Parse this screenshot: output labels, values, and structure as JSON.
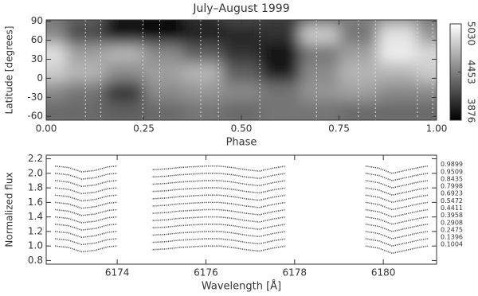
{
  "chart_data": [
    {
      "type": "heatmap",
      "title": "July–August 1999",
      "xlabel": "Phase",
      "ylabel": "Latitude [degrees]",
      "xlim": [
        0,
        1
      ],
      "xticks": [
        {
          "value": 0,
          "label": "0.00"
        },
        {
          "value": 0.25,
          "label": "0.25"
        },
        {
          "value": 0.5,
          "label": "0.50"
        },
        {
          "value": 0.75,
          "label": "0.75"
        },
        {
          "value": 1,
          "label": "1.00"
        }
      ],
      "ylim": [
        -66,
        92
      ],
      "yticks": [
        -60,
        -30,
        0,
        30,
        60,
        90
      ],
      "x": [
        0,
        0.1,
        0.2,
        0.3,
        0.4,
        0.5,
        0.6,
        0.7,
        0.8,
        0.9,
        1.0
      ],
      "y": [
        90,
        60,
        30,
        0,
        -30,
        -60
      ],
      "z": [
        [
          4400,
          4300,
          4000,
          3950,
          4100,
          4200,
          4150,
          4300,
          4450,
          4500,
          4400
        ],
        [
          4500,
          4200,
          3950,
          3900,
          4000,
          4050,
          4100,
          4800,
          4400,
          4900,
          4550
        ],
        [
          4900,
          4600,
          4700,
          4500,
          4300,
          4100,
          3950,
          4400,
          4600,
          4950,
          4850
        ],
        [
          4800,
          4700,
          4500,
          4600,
          4700,
          4300,
          4000,
          4500,
          4700,
          4700,
          4800
        ],
        [
          4500,
          4400,
          4100,
          4500,
          4550,
          4500,
          4400,
          4550,
          4600,
          4500,
          4500
        ],
        [
          4350,
          4350,
          4300,
          4350,
          4400,
          4350,
          4400,
          4400,
          4350,
          4350,
          4350
        ]
      ],
      "zlim": [
        3876,
        5030
      ],
      "zticks": [
        3876,
        4453,
        5030
      ],
      "phases": [
        0.1004,
        0.1396,
        0.2475,
        0.2908,
        0.3958,
        0.4411,
        0.5472,
        0.6923,
        0.7998,
        0.8435,
        0.9509,
        0.9899
      ]
    },
    {
      "type": "line",
      "xlabel": "Wavelength [Å]",
      "ylabel": "Normalized flux",
      "xlim": [
        6172.4,
        6181.2
      ],
      "xticks": [
        6174,
        6176,
        6178,
        6180
      ],
      "ylim": [
        0.75,
        2.25
      ],
      "yticks": [
        0.8,
        {
          "value": 1,
          "label": "1.0"
        },
        1.2,
        1.4,
        1.6,
        1.8,
        {
          "value": 2,
          "label": "2.0"
        },
        2.2
      ],
      "x": [
        6172.6,
        6172.9,
        6173.2,
        6173.5,
        6173.8,
        6174.0,
        6174.4,
        6174.8,
        6175.1,
        6175.4,
        6175.7,
        6176.0,
        6176.3,
        6176.6,
        6176.9,
        6177.2,
        6177.5,
        6177.8,
        6178.6,
        6179.6,
        6179.9,
        6180.2,
        6180.5,
        6180.8,
        6181.0
      ],
      "color": "#555555",
      "series": [
        {
          "name": "0.1004",
          "values": [
            1.0,
            0.98,
            0.92,
            0.94,
            0.99,
            1.0,
            null,
            0.95,
            0.96,
            0.98,
            0.99,
            1.0,
            1.0,
            0.98,
            0.95,
            0.93,
            0.97,
            1.0,
            null,
            1.0,
            0.97,
            0.9,
            0.94,
            0.98,
            1.0
          ]
        },
        {
          "name": "0.1396",
          "values": [
            1.1,
            1.08,
            1.02,
            1.04,
            1.09,
            1.1,
            null,
            1.05,
            1.06,
            1.08,
            1.09,
            1.1,
            1.1,
            1.08,
            1.05,
            1.03,
            1.07,
            1.1,
            null,
            1.1,
            1.07,
            1.0,
            1.04,
            1.08,
            1.1
          ]
        },
        {
          "name": "0.2475",
          "values": [
            1.2,
            1.18,
            1.12,
            1.14,
            1.19,
            1.2,
            null,
            1.15,
            1.16,
            1.18,
            1.19,
            1.2,
            1.2,
            1.18,
            1.15,
            1.13,
            1.17,
            1.2,
            null,
            1.2,
            1.17,
            1.1,
            1.14,
            1.18,
            1.2
          ]
        },
        {
          "name": "0.2908",
          "values": [
            1.3,
            1.28,
            1.22,
            1.24,
            1.29,
            1.3,
            null,
            1.25,
            1.26,
            1.28,
            1.29,
            1.3,
            1.3,
            1.28,
            1.25,
            1.23,
            1.27,
            1.3,
            null,
            1.3,
            1.27,
            1.2,
            1.24,
            1.28,
            1.3
          ]
        },
        {
          "name": "0.3958",
          "values": [
            1.4,
            1.38,
            1.32,
            1.34,
            1.39,
            1.4,
            null,
            1.35,
            1.36,
            1.38,
            1.39,
            1.4,
            1.4,
            1.38,
            1.35,
            1.33,
            1.37,
            1.4,
            null,
            1.4,
            1.37,
            1.3,
            1.34,
            1.38,
            1.4
          ]
        },
        {
          "name": "0.4411",
          "values": [
            1.5,
            1.48,
            1.42,
            1.44,
            1.49,
            1.5,
            null,
            1.45,
            1.46,
            1.48,
            1.49,
            1.5,
            1.5,
            1.48,
            1.45,
            1.43,
            1.47,
            1.5,
            null,
            1.5,
            1.47,
            1.4,
            1.44,
            1.48,
            1.5
          ]
        },
        {
          "name": "0.5472",
          "values": [
            1.6,
            1.58,
            1.52,
            1.54,
            1.59,
            1.6,
            null,
            1.55,
            1.56,
            1.58,
            1.59,
            1.6,
            1.6,
            1.58,
            1.55,
            1.53,
            1.57,
            1.6,
            null,
            1.6,
            1.57,
            1.5,
            1.54,
            1.58,
            1.6
          ]
        },
        {
          "name": "0.6923",
          "values": [
            1.7,
            1.68,
            1.62,
            1.64,
            1.69,
            1.7,
            null,
            1.65,
            1.66,
            1.68,
            1.69,
            1.7,
            1.7,
            1.68,
            1.65,
            1.63,
            1.67,
            1.7,
            null,
            1.7,
            1.67,
            1.6,
            1.64,
            1.68,
            1.7
          ]
        },
        {
          "name": "0.7998",
          "values": [
            1.8,
            1.78,
            1.72,
            1.74,
            1.79,
            1.8,
            null,
            1.75,
            1.76,
            1.78,
            1.79,
            1.8,
            1.8,
            1.78,
            1.75,
            1.73,
            1.77,
            1.8,
            null,
            1.8,
            1.77,
            1.7,
            1.74,
            1.78,
            1.8
          ]
        },
        {
          "name": "0.8435",
          "values": [
            1.9,
            1.88,
            1.82,
            1.84,
            1.89,
            1.9,
            null,
            1.85,
            1.86,
            1.88,
            1.89,
            1.9,
            1.9,
            1.88,
            1.85,
            1.83,
            1.87,
            1.9,
            null,
            1.9,
            1.87,
            1.8,
            1.84,
            1.88,
            1.9
          ]
        },
        {
          "name": "0.9509",
          "values": [
            2.0,
            1.98,
            1.92,
            1.94,
            1.99,
            2.0,
            null,
            1.95,
            1.96,
            1.98,
            1.99,
            2.0,
            2.0,
            1.98,
            1.95,
            1.93,
            1.97,
            2.0,
            null,
            2.0,
            1.97,
            1.9,
            1.94,
            1.98,
            2.0
          ]
        },
        {
          "name": "0.9899",
          "values": [
            2.1,
            2.08,
            2.02,
            2.04,
            2.09,
            2.1,
            null,
            2.05,
            2.06,
            2.08,
            2.09,
            2.1,
            2.1,
            2.08,
            2.05,
            2.03,
            2.07,
            2.1,
            null,
            2.1,
            2.07,
            2.0,
            2.04,
            2.08,
            2.1
          ]
        }
      ]
    }
  ]
}
